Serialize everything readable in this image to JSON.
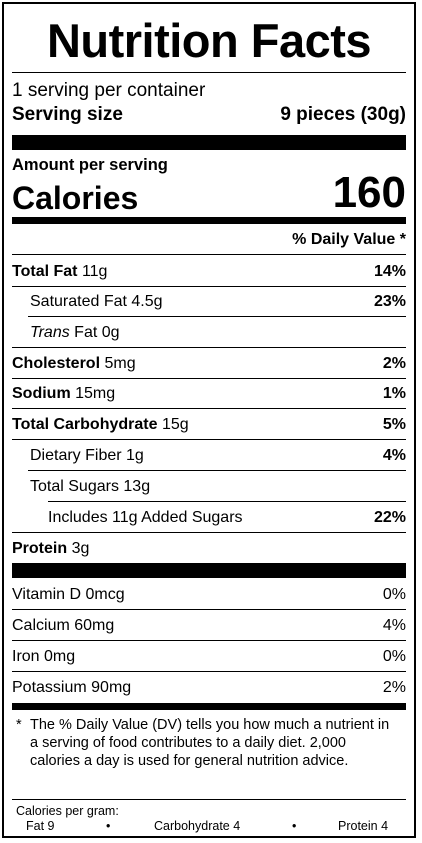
{
  "title": "Nutrition Facts",
  "servings_per_container": "1 serving per container",
  "serving_size_label": "Serving size",
  "serving_size_value": "9 pieces (30g)",
  "amount_per_serving": "Amount per serving",
  "calories_label": "Calories",
  "calories_value": "160",
  "dv_header": "% Daily Value *",
  "nutrients": [
    {
      "name": "Total Fat",
      "amount": "11g",
      "dv": "14%"
    },
    {
      "name": "Saturated Fat",
      "amount": "4.5g",
      "dv": "23%"
    },
    {
      "name_italic": "Trans",
      "name": "Fat",
      "amount": "0g",
      "dv": ""
    },
    {
      "name": "Cholesterol",
      "amount": "5mg",
      "dv": "2%"
    },
    {
      "name": "Sodium",
      "amount": "15mg",
      "dv": "1%"
    },
    {
      "name": "Total Carbohydrate",
      "amount": "15g",
      "dv": "5%"
    },
    {
      "name": "Dietary Fiber",
      "amount": "1g",
      "dv": "4%"
    },
    {
      "name": "Total Sugars",
      "amount": "13g",
      "dv": ""
    },
    {
      "name": "Includes 11g Added Sugars",
      "amount": "",
      "dv": "22%"
    },
    {
      "name": "Protein",
      "amount": "3g",
      "dv": ""
    }
  ],
  "vitamins": [
    {
      "name": "Vitamin D",
      "amount": "0mcg",
      "dv": "0%"
    },
    {
      "name": "Calcium",
      "amount": "60mg",
      "dv": "4%"
    },
    {
      "name": "Iron",
      "amount": "0mg",
      "dv": "0%"
    },
    {
      "name": "Potassium",
      "amount": "90mg",
      "dv": "2%"
    }
  ],
  "footnote_star": "*",
  "footnote": "The % Daily Value (DV) tells you how much a nutrient in a serving of food contributes to a daily diet. 2,000 calories a day is used for general nutrition advice.",
  "calories_per_gram": {
    "label": "Calories per gram:",
    "fat": "Fat 9",
    "carbohydrate": "Carbohydrate 4",
    "protein": "Protein 4",
    "separator": "•"
  }
}
